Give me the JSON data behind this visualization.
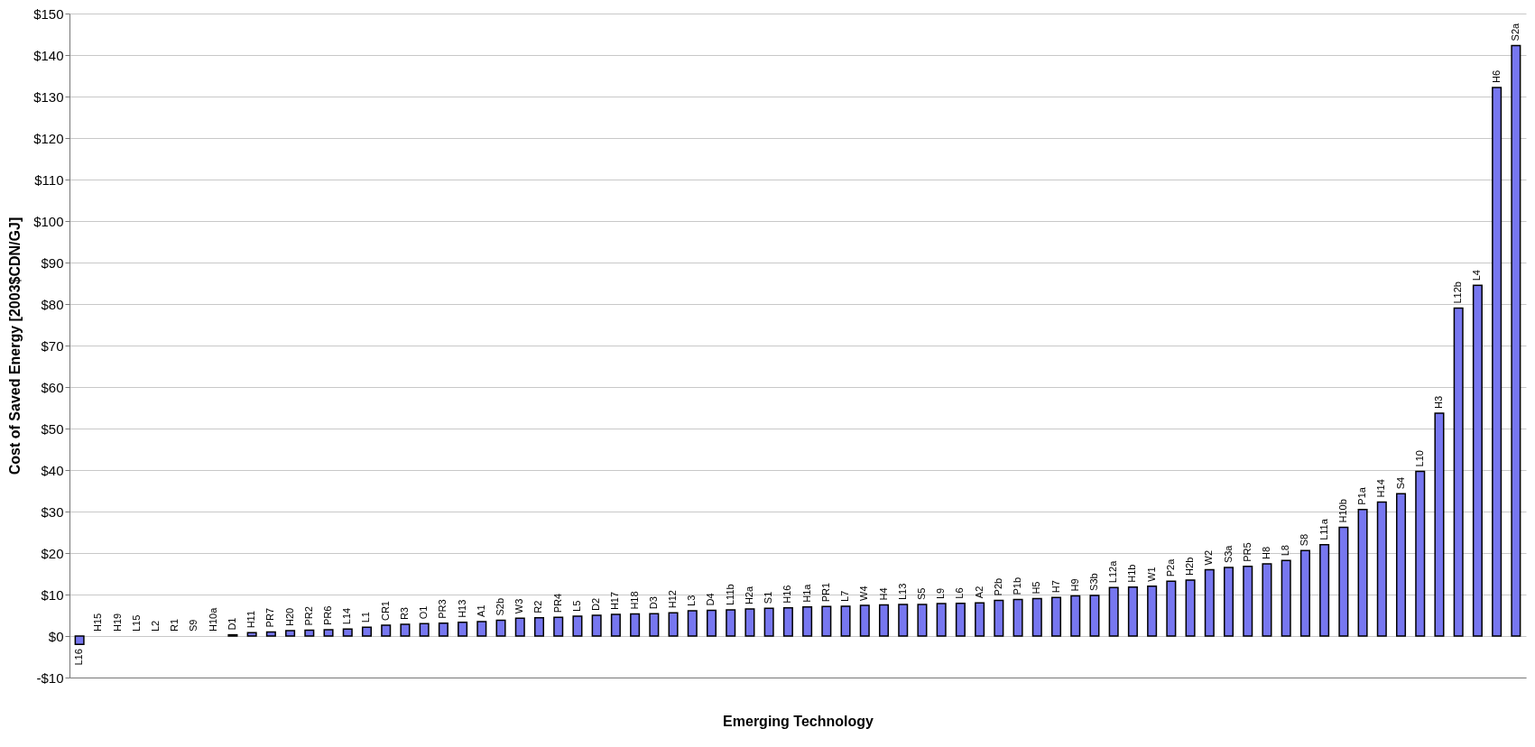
{
  "chart_data": {
    "type": "bar",
    "xlabel": "Emerging Technology",
    "ylabel": "Cost of Saved Energy [2003$CDN/GJ]",
    "categories": [
      "L16",
      "H15",
      "H19",
      "L15",
      "L2",
      "R1",
      "S9",
      "H10a",
      "D1",
      "H11",
      "PR7",
      "H20",
      "PR2",
      "PR6",
      "L14",
      "L1",
      "CR1",
      "R3",
      "O1",
      "PR3",
      "H13",
      "A1",
      "S2b",
      "W3",
      "R2",
      "PR4",
      "L5",
      "D2",
      "H17",
      "H18",
      "D3",
      "H12",
      "L3",
      "D4",
      "L11b",
      "H2a",
      "S1",
      "H16",
      "H1a",
      "PR1",
      "L7",
      "W4",
      "H4",
      "L13",
      "S5",
      "L9",
      "L6",
      "A2",
      "P2b",
      "P1b",
      "H5",
      "H7",
      "H9",
      "S3b",
      "L12a",
      "H1b",
      "W1",
      "P2a",
      "H2b",
      "W2",
      "S3a",
      "PR5",
      "H8",
      "L8",
      "S8",
      "L11a",
      "H10b",
      "P1a",
      "H14",
      "S4",
      "L10",
      "H3",
      "L12b",
      "L4",
      "H6",
      "S2a"
    ],
    "values": [
      -2,
      0,
      0,
      0,
      0,
      0,
      0,
      0,
      0.3,
      0.8,
      1.0,
      1.3,
      1.4,
      1.5,
      1.7,
      2.1,
      2.6,
      2.8,
      3.0,
      3.1,
      3.3,
      3.5,
      3.8,
      4.3,
      4.4,
      4.5,
      4.8,
      5.0,
      5.2,
      5.3,
      5.4,
      5.6,
      6.1,
      6.2,
      6.3,
      6.5,
      6.7,
      6.8,
      7.0,
      7.1,
      7.2,
      7.4,
      7.5,
      7.6,
      7.6,
      7.8,
      7.9,
      8.0,
      8.6,
      8.8,
      9.0,
      9.3,
      9.7,
      9.8,
      11.7,
      11.8,
      12.0,
      13.2,
      13.5,
      16.0,
      16.5,
      16.8,
      17.4,
      18.2,
      20.6,
      22.0,
      26.2,
      30.5,
      32.3,
      34.3,
      39.7,
      53.7,
      79.0,
      84.5,
      132.2,
      142.3
    ],
    "color": "#7777f0",
    "ylim": [
      -10,
      150
    ],
    "yticks": [
      {
        "value": -10,
        "label": "-$10"
      },
      {
        "value": 0,
        "label": "$0"
      },
      {
        "value": 10,
        "label": "$10"
      },
      {
        "value": 20,
        "label": "$20"
      },
      {
        "value": 30,
        "label": "$30"
      },
      {
        "value": 40,
        "label": "$40"
      },
      {
        "value": 50,
        "label": "$50"
      },
      {
        "value": 60,
        "label": "$60"
      },
      {
        "value": 70,
        "label": "$70"
      },
      {
        "value": 80,
        "label": "$80"
      },
      {
        "value": 90,
        "label": "$90"
      },
      {
        "value": 100,
        "label": "$100"
      },
      {
        "value": 110,
        "label": "$110"
      },
      {
        "value": 120,
        "label": "$120"
      },
      {
        "value": 130,
        "label": "$130"
      },
      {
        "value": 140,
        "label": "$140"
      },
      {
        "value": 150,
        "label": "$150"
      }
    ],
    "grid": "y"
  }
}
